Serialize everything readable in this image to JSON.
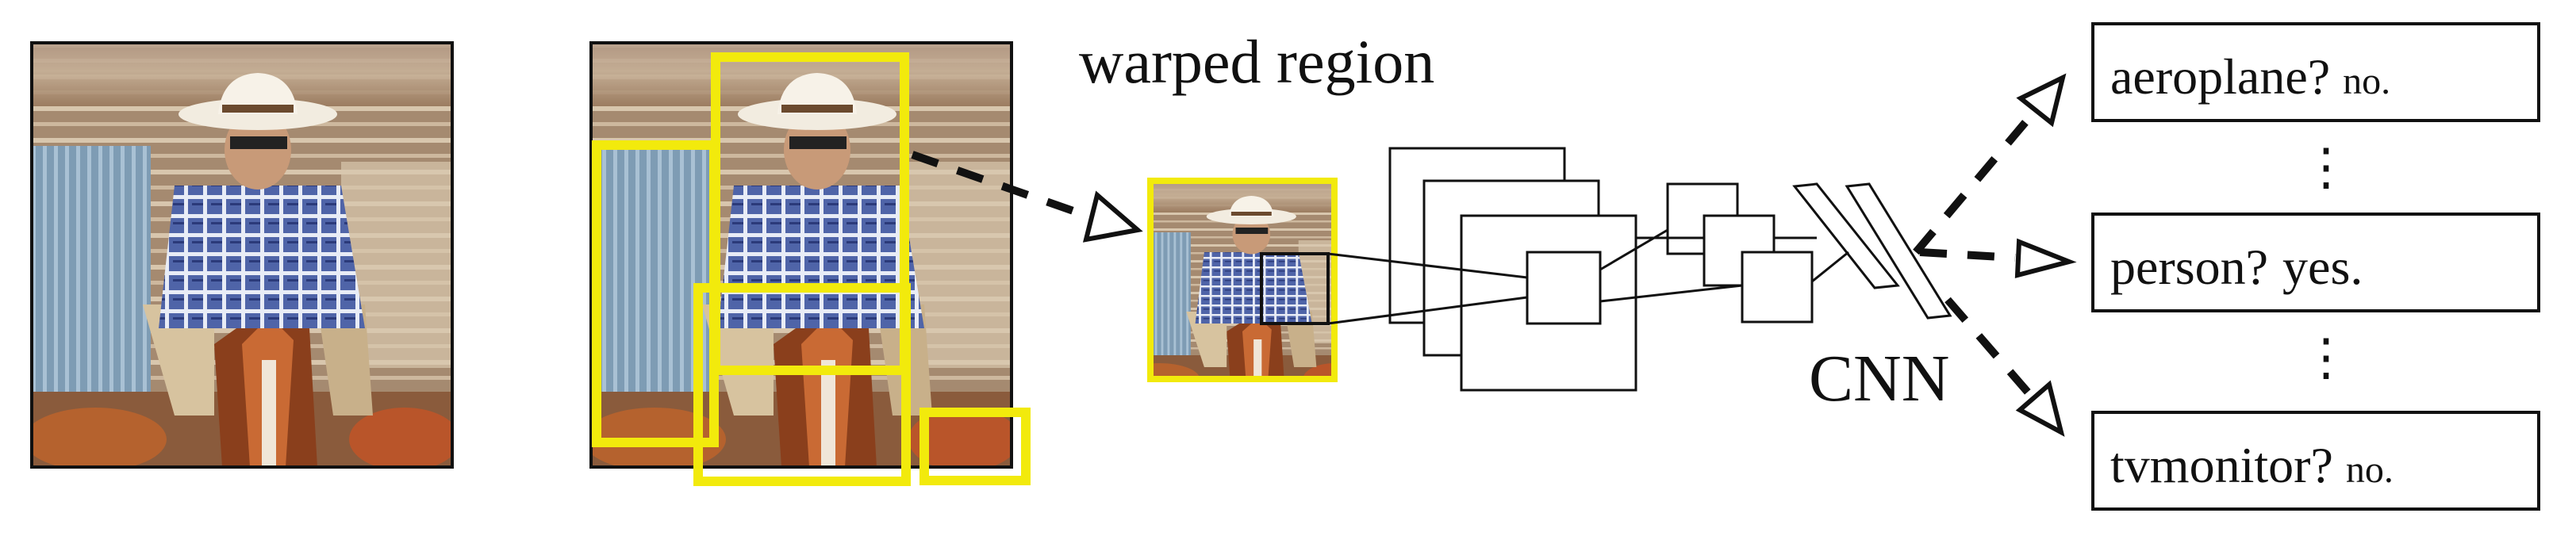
{
  "title": "warped region",
  "network_label": "CNN",
  "outputs": [
    {
      "main": "aeroplane?",
      "answer": "no."
    },
    {
      "main": "person?",
      "answer": "yes."
    },
    {
      "main": "tvmonitor?",
      "answer": "no."
    }
  ],
  "ellipsis": "⋮",
  "colors": {
    "proposal_box": "#f2ea0c",
    "arrow": "#111111"
  },
  "icons": {
    "input_photo": "rider-on-horse-photo",
    "region_photo": "cropped-rider-photo"
  }
}
